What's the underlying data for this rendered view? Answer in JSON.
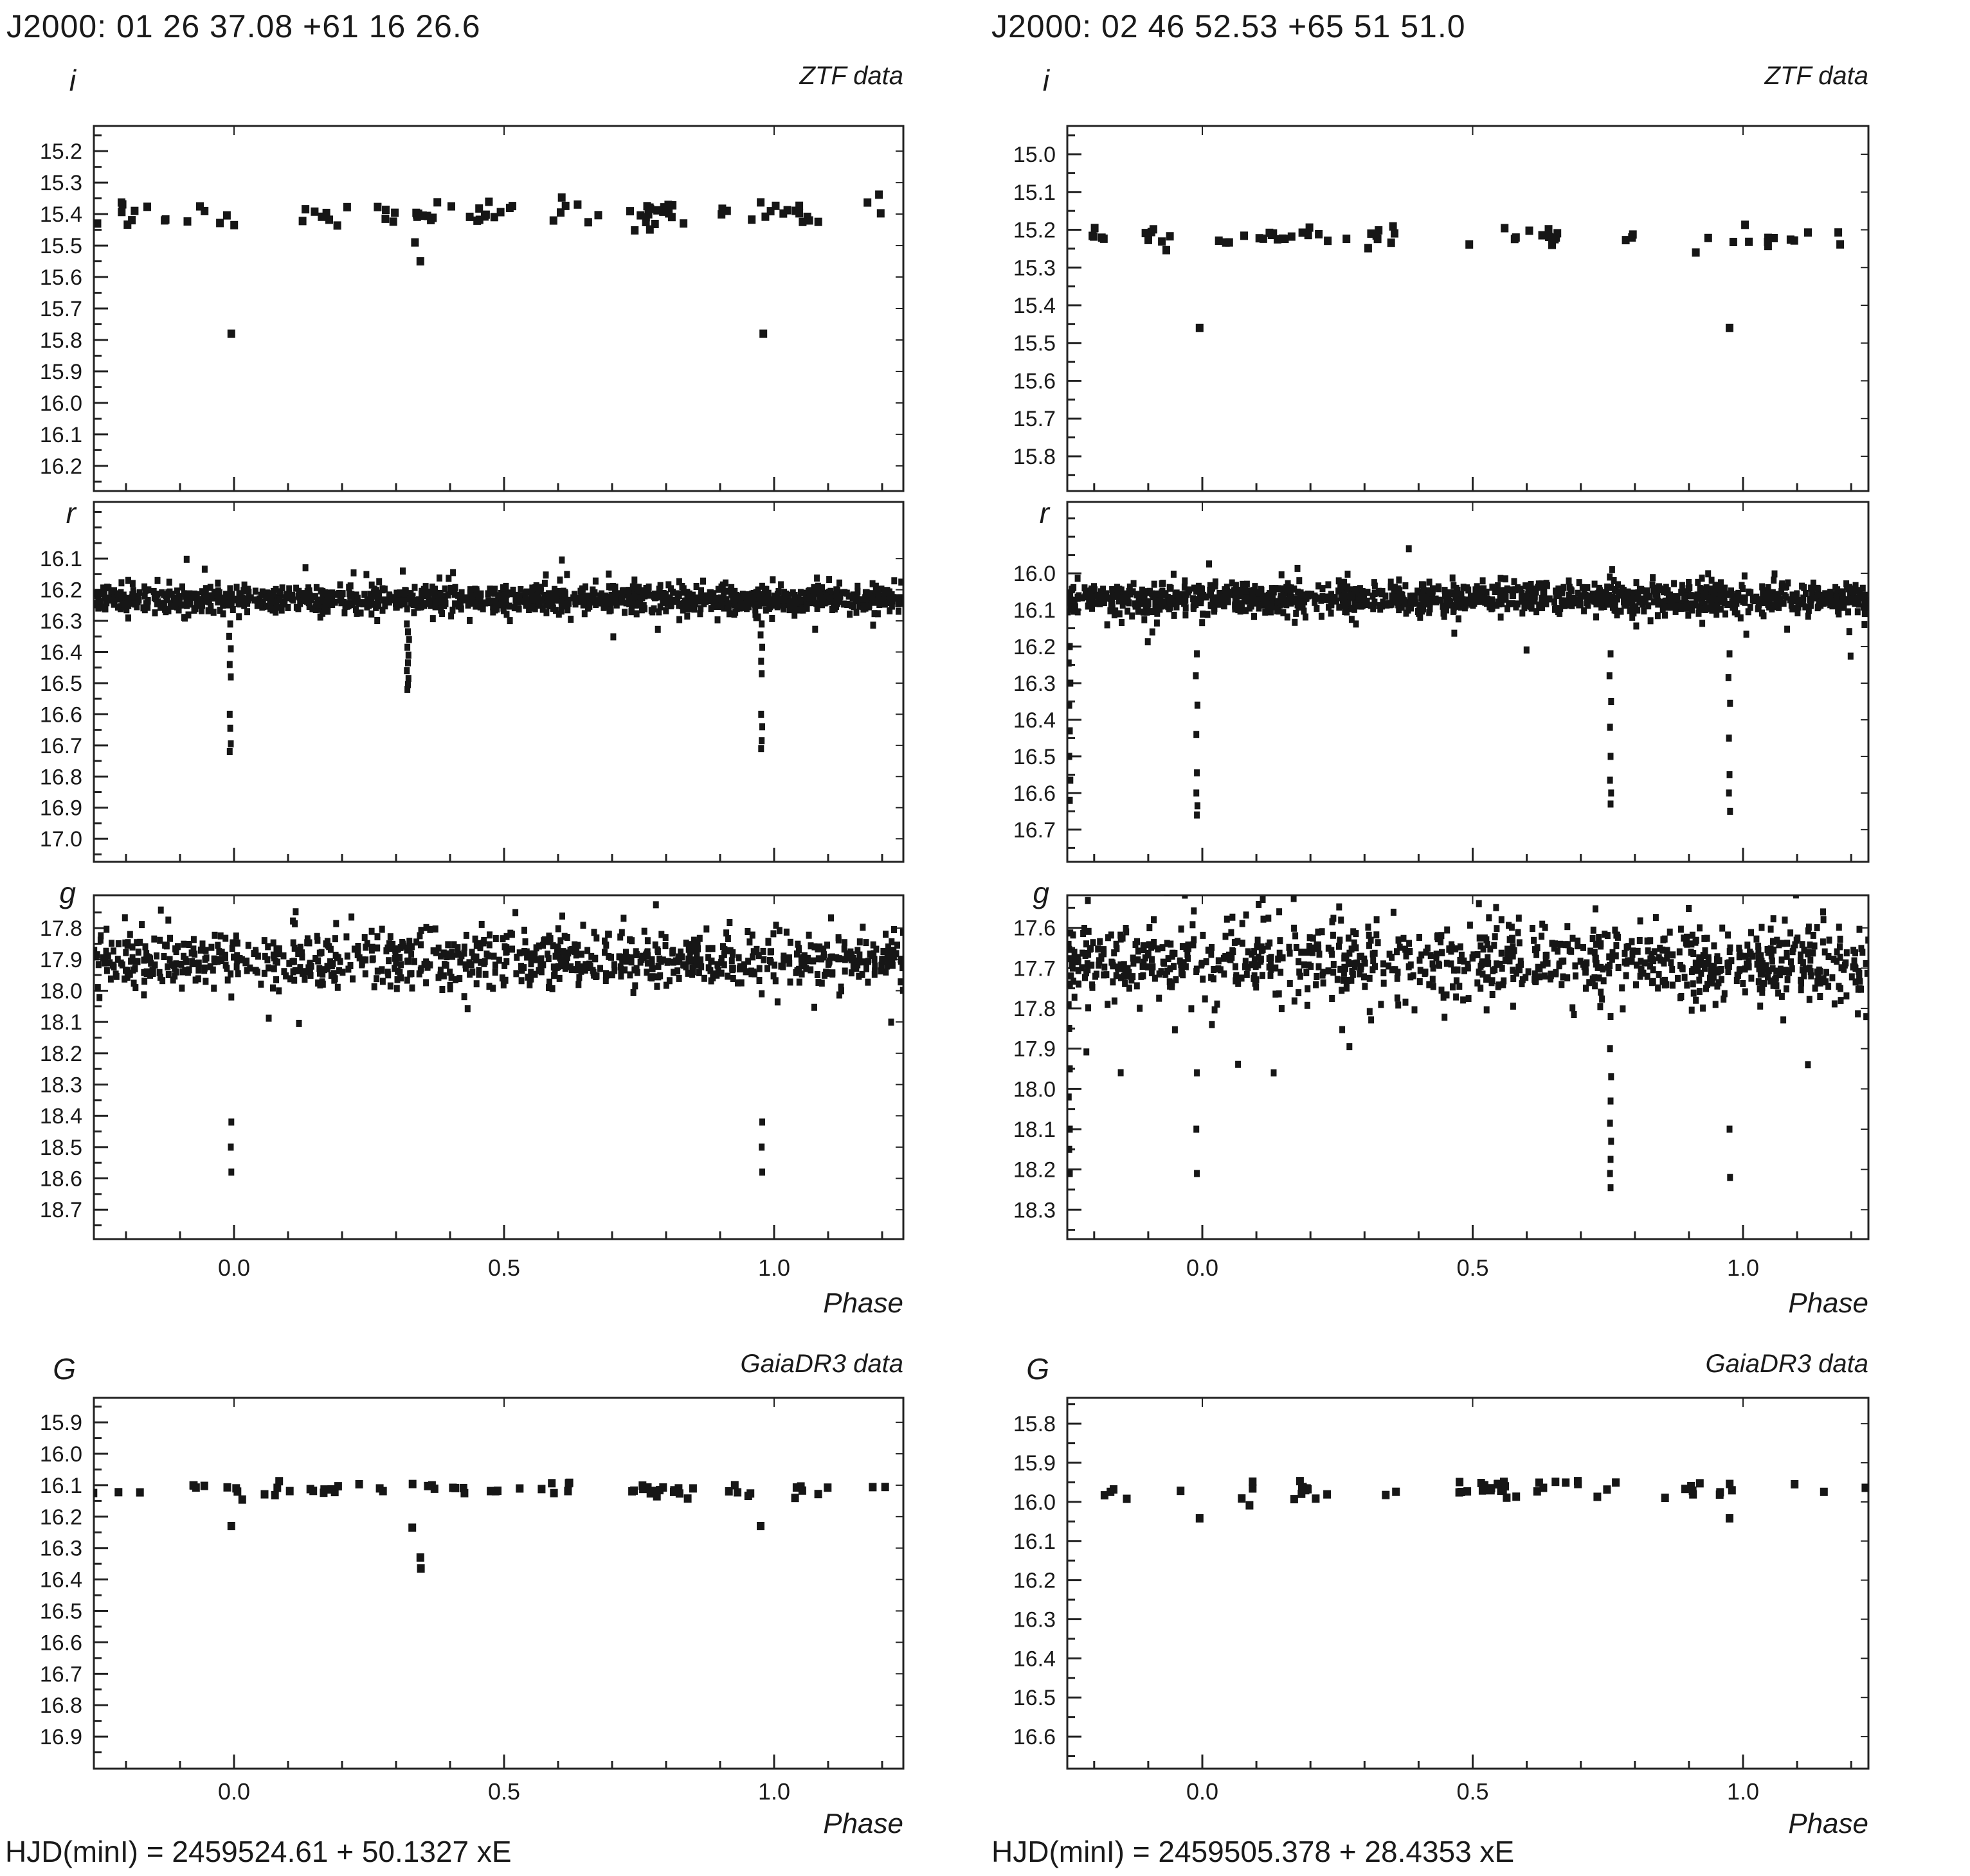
{
  "figure": {
    "background": "#ffffff",
    "point_color": "#161616",
    "axis_color": "#222222",
    "text_color": "#1a1a1a"
  },
  "columns": [
    {
      "title": "J2000: 01 26 37.08 +61 16 26.6",
      "ztf_survey_label": "ZTF data",
      "gaia_survey_label": "GaiaDR3 data",
      "ztf_phase_label": "Phase",
      "gaia_phase_label": "Phase",
      "ephemeris": "HJD(minI) = 2459524.61 + 50.1327 xE"
    },
    {
      "title": "J2000: 02 46 52.53 +65 51 51.0",
      "ztf_survey_label": "ZTF data",
      "gaia_survey_label": "GaiaDR3 data",
      "ztf_phase_label": "Phase",
      "gaia_phase_label": "Phase",
      "ephemeris": "HJD(minI) = 2459505.378 + 28.4353 xE"
    }
  ],
  "chart_data": [
    {
      "id": "left-ztf-i",
      "type": "scatter",
      "column": "left",
      "row": "i",
      "ylabel": "i",
      "survey": "ZTF",
      "xlabel": "Phase",
      "y_ticks": [
        15.2,
        15.3,
        15.4,
        15.5,
        15.6,
        15.7,
        15.8,
        15.9,
        16.0,
        16.1,
        16.2
      ],
      "ylim": [
        15.12,
        16.28
      ],
      "x_ticks": [
        0.0,
        0.5,
        1.0
      ],
      "x_tick_labels": [
        "0.0",
        "0.5",
        "1.0"
      ],
      "xlim": [
        -0.2595,
        1.2395
      ],
      "band_mag": 15.4,
      "band_sigma": 0.024,
      "mode": "clusters",
      "n_clusters": 34,
      "seed": 7,
      "outliers": [
        [
          -0.253,
          15.43
        ],
        [
          -0.005,
          15.78
        ],
        [
          0.98,
          15.78
        ],
        [
          0.345,
          15.55
        ],
        [
          0.335,
          15.49
        ]
      ],
      "eclipse_points": []
    },
    {
      "id": "left-ztf-r",
      "type": "scatter",
      "column": "left",
      "row": "r",
      "ylabel": "r",
      "survey": "ZTF",
      "xlabel": "Phase",
      "y_ticks": [
        16.1,
        16.2,
        16.3,
        16.4,
        16.5,
        16.6,
        16.7,
        16.8,
        16.9,
        17.0
      ],
      "ylim": [
        15.918,
        17.074
      ],
      "x_ticks": [
        0.0,
        0.5,
        1.0
      ],
      "x_tick_labels": [
        "0.0",
        "0.5",
        "1.0"
      ],
      "xlim": [
        -0.2595,
        1.2395
      ],
      "band_mag": 16.23,
      "band_sigma": 0.02,
      "mode": "band",
      "n_points": 1300,
      "seed": 13,
      "outliers": [],
      "eclipse_points": [
        [
          -0.007,
          16.31
        ],
        [
          -0.009,
          16.35
        ],
        [
          -0.006,
          16.39
        ],
        [
          -0.008,
          16.44
        ],
        [
          -0.006,
          16.48
        ],
        [
          -0.008,
          16.6
        ],
        [
          -0.007,
          16.645
        ],
        [
          -0.006,
          16.695
        ],
        [
          -0.008,
          16.72
        ],
        [
          0.32,
          16.31
        ],
        [
          0.322,
          16.335
        ],
        [
          0.324,
          16.36
        ],
        [
          0.321,
          16.385
        ],
        [
          0.323,
          16.41
        ],
        [
          0.322,
          16.435
        ],
        [
          0.32,
          16.46
        ],
        [
          0.323,
          16.485
        ],
        [
          0.322,
          16.505
        ],
        [
          0.321,
          16.52
        ],
        [
          0.977,
          16.31
        ],
        [
          0.975,
          16.345
        ],
        [
          0.978,
          16.385
        ],
        [
          0.976,
          16.43
        ],
        [
          0.977,
          16.47
        ],
        [
          0.976,
          16.6
        ],
        [
          0.978,
          16.64
        ],
        [
          0.977,
          16.685
        ],
        [
          0.976,
          16.71
        ]
      ]
    },
    {
      "id": "left-ztf-g",
      "type": "scatter",
      "column": "left",
      "row": "g",
      "ylabel": "g",
      "survey": "ZTF",
      "xlabel": "Phase",
      "y_ticks": [
        17.8,
        17.9,
        18.0,
        18.1,
        18.2,
        18.3,
        18.4,
        18.5,
        18.6,
        18.7
      ],
      "ylim": [
        17.695,
        18.794
      ],
      "x_ticks": [
        0.0,
        0.5,
        1.0
      ],
      "x_tick_labels": [
        "0.0",
        "0.5",
        "1.0"
      ],
      "xlim": [
        -0.2595,
        1.2395
      ],
      "band_mag": 17.905,
      "band_sigma": 0.042,
      "mode": "band",
      "n_points": 900,
      "seed": 21,
      "outliers": [
        [
          -0.252,
          17.99
        ],
        [
          -0.005,
          18.02
        ],
        [
          0.977,
          18.01
        ]
      ],
      "eclipse_points": [
        [
          -0.005,
          18.42
        ],
        [
          -0.006,
          18.5
        ],
        [
          -0.005,
          18.58
        ],
        [
          0.978,
          18.42
        ],
        [
          0.977,
          18.5
        ],
        [
          0.978,
          18.58
        ]
      ]
    },
    {
      "id": "left-gaia-G",
      "type": "scatter",
      "column": "left",
      "row": "G",
      "ylabel": "G",
      "survey": "GaiaDR3",
      "xlabel": "Phase",
      "y_ticks": [
        15.9,
        16.0,
        16.1,
        16.2,
        16.3,
        16.4,
        16.5,
        16.6,
        16.7,
        16.8,
        16.9
      ],
      "ylim": [
        15.822,
        17.002
      ],
      "x_ticks": [
        0.0,
        0.5,
        1.0
      ],
      "x_tick_labels": [
        "0.0",
        "0.5",
        "1.0"
      ],
      "xlim": [
        -0.2595,
        1.2395
      ],
      "band_mag": 16.115,
      "band_sigma": 0.012,
      "mode": "clusters",
      "n_clusters": 30,
      "seed": 31,
      "outliers": [],
      "eclipse_points": [
        [
          -0.005,
          16.23
        ],
        [
          0.33,
          16.235
        ],
        [
          0.345,
          16.33
        ],
        [
          0.346,
          16.365
        ],
        [
          0.975,
          16.23
        ]
      ]
    },
    {
      "id": "right-ztf-i",
      "type": "scatter",
      "column": "right",
      "row": "i",
      "ylabel": "i",
      "survey": "ZTF",
      "xlabel": "Phase",
      "y_ticks": [
        15.0,
        15.1,
        15.2,
        15.3,
        15.4,
        15.5,
        15.6,
        15.7,
        15.8
      ],
      "ylim": [
        14.925,
        15.892
      ],
      "x_ticks": [
        0.0,
        0.5,
        1.0
      ],
      "x_tick_labels": [
        "0.0",
        "0.5",
        "1.0"
      ],
      "xlim": [
        -0.2497,
        1.2319
      ],
      "band_mag": 15.22,
      "band_sigma": 0.016,
      "mode": "clusters",
      "n_clusters": 27,
      "seed": 41,
      "outliers": [
        [
          -0.005,
          15.46
        ],
        [
          0.975,
          15.46
        ]
      ],
      "eclipse_points": []
    },
    {
      "id": "right-ztf-r",
      "type": "scatter",
      "column": "right",
      "row": "r",
      "ylabel": "r",
      "survey": "ZTF",
      "xlabel": "Phase",
      "y_ticks": [
        16.0,
        16.1,
        16.2,
        16.3,
        16.4,
        16.5,
        16.6,
        16.7
      ],
      "ylim": [
        15.805,
        16.788
      ],
      "x_ticks": [
        0.0,
        0.5,
        1.0
      ],
      "x_tick_labels": [
        "0.0",
        "0.5",
        "1.0"
      ],
      "xlim": [
        -0.2497,
        1.2319
      ],
      "band_mag": 16.07,
      "band_sigma": 0.02,
      "mode": "band",
      "n_points": 1300,
      "seed": 47,
      "outliers": [],
      "eclipse_points": [
        [
          -0.245,
          16.2
        ],
        [
          -0.247,
          16.245
        ],
        [
          -0.244,
          16.3
        ],
        [
          -0.246,
          16.36
        ],
        [
          -0.245,
          16.43
        ],
        [
          -0.246,
          16.5
        ],
        [
          -0.244,
          16.565
        ],
        [
          -0.245,
          16.62
        ],
        [
          -0.01,
          16.22
        ],
        [
          -0.012,
          16.28
        ],
        [
          -0.009,
          16.36
        ],
        [
          -0.011,
          16.44
        ],
        [
          -0.01,
          16.545
        ],
        [
          -0.011,
          16.6
        ],
        [
          -0.009,
          16.635
        ],
        [
          -0.01,
          16.66
        ],
        [
          0.755,
          16.22
        ],
        [
          0.753,
          16.28
        ],
        [
          0.756,
          16.35
        ],
        [
          0.754,
          16.42
        ],
        [
          0.755,
          16.5
        ],
        [
          0.754,
          16.565
        ],
        [
          0.756,
          16.6
        ],
        [
          0.755,
          16.63
        ],
        [
          0.975,
          16.22
        ],
        [
          0.973,
          16.285
        ],
        [
          0.976,
          16.355
        ],
        [
          0.974,
          16.45
        ],
        [
          0.975,
          16.55
        ],
        [
          0.974,
          16.6
        ],
        [
          0.976,
          16.65
        ]
      ]
    },
    {
      "id": "right-ztf-g",
      "type": "scatter",
      "column": "right",
      "row": "g",
      "ylabel": "g",
      "survey": "ZTF",
      "xlabel": "Phase",
      "y_ticks": [
        17.6,
        17.7,
        17.8,
        17.9,
        18.0,
        18.1,
        18.2,
        18.3
      ],
      "ylim": [
        17.519,
        18.373
      ],
      "x_ticks": [
        0.0,
        0.5,
        1.0
      ],
      "x_tick_labels": [
        "0.0",
        "0.5",
        "1.0"
      ],
      "xlim": [
        -0.2497,
        1.2319
      ],
      "band_mag": 17.685,
      "band_sigma": 0.045,
      "mode": "band",
      "n_points": 950,
      "seed": 53,
      "outliers": [
        [
          0.132,
          17.96
        ],
        [
          1.12,
          17.94
        ]
      ],
      "eclipse_points": [
        [
          -0.246,
          17.85
        ],
        [
          -0.245,
          17.95
        ],
        [
          -0.247,
          18.02
        ],
        [
          -0.245,
          18.1
        ],
        [
          -0.246,
          18.15
        ],
        [
          -0.245,
          18.21
        ],
        [
          -0.01,
          17.96
        ],
        [
          -0.011,
          18.1
        ],
        [
          -0.01,
          18.21
        ],
        [
          0.755,
          17.82
        ],
        [
          0.754,
          17.9
        ],
        [
          0.756,
          17.97
        ],
        [
          0.755,
          18.03
        ],
        [
          0.754,
          18.085
        ],
        [
          0.756,
          18.13
        ],
        [
          0.755,
          18.175
        ],
        [
          0.754,
          18.21
        ],
        [
          0.755,
          18.245
        ],
        [
          0.975,
          18.1
        ],
        [
          0.976,
          18.22
        ]
      ]
    },
    {
      "id": "right-gaia-G",
      "type": "scatter",
      "column": "right",
      "row": "G",
      "ylabel": "G",
      "survey": "GaiaDR3",
      "xlabel": "Phase",
      "y_ticks": [
        15.8,
        15.9,
        16.0,
        16.1,
        16.2,
        16.3,
        16.4,
        16.5,
        16.6
      ],
      "ylim": [
        15.734,
        16.682
      ],
      "x_ticks": [
        0.0,
        0.5,
        1.0
      ],
      "x_tick_labels": [
        "0.0",
        "0.5",
        "1.0"
      ],
      "xlim": [
        -0.2497,
        1.2319
      ],
      "band_mag": 15.968,
      "band_sigma": 0.012,
      "mode": "clusters",
      "n_clusters": 27,
      "seed": 61,
      "outliers": [],
      "eclipse_points": [
        [
          -0.005,
          16.042
        ],
        [
          0.975,
          16.042
        ]
      ]
    }
  ]
}
